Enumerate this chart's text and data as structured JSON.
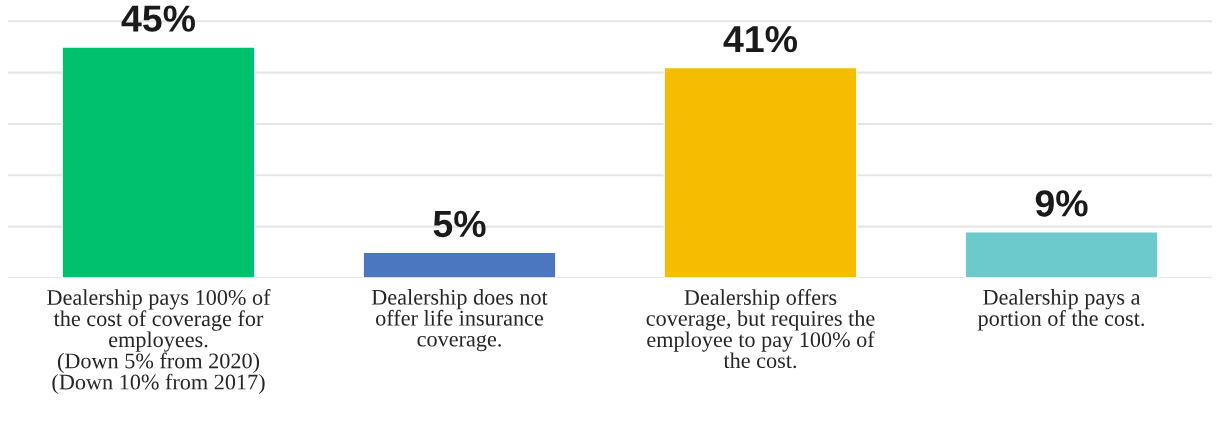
{
  "chart_data": {
    "type": "bar",
    "categories": [
      "Dealership pays 100% of\nthe cost of coverage for\nemployees.\n(Down 5% from 2020)\n(Down 10% from 2017)",
      "Dealership does not\noffer life insurance\ncoverage.",
      "Dealership offers\ncoverage, but requires the\nemployee to pay 100% of\nthe cost.",
      "Dealership pays a\nportion of the cost."
    ],
    "values": [
      45,
      5,
      41,
      9
    ],
    "colors": [
      "#00c16e",
      "#4a77bf",
      "#f6bd00",
      "#6cc9cc"
    ],
    "value_labels": [
      "45%",
      "5%",
      "41%",
      "9%"
    ],
    "tick_labels": "x",
    "grid": "y"
  }
}
